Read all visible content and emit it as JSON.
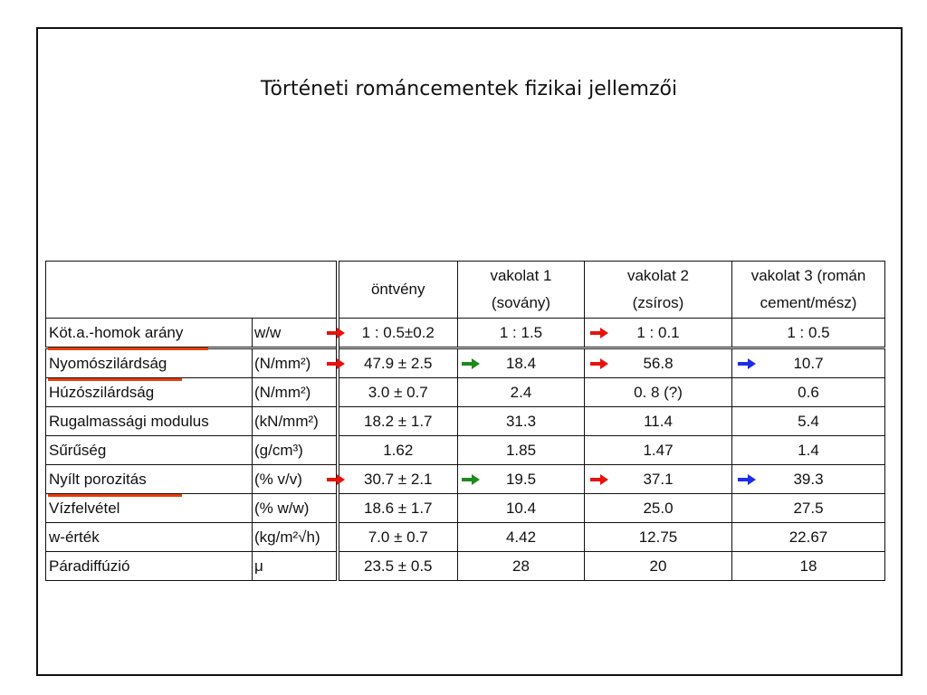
{
  "title": "Történeti románcementek fizikai jellemzői",
  "table": {
    "header": [
      [
        "öntvény"
      ],
      [
        "vakolat 1",
        "(sovány)"
      ],
      [
        "vakolat 2",
        "(zsíros)"
      ],
      [
        "vakolat 3 (román",
        "cement/mész)"
      ]
    ],
    "rows": [
      {
        "label": "Köt.a.-homok arány",
        "underline": "#e83e0c",
        "unit": "w/w",
        "cells": [
          {
            "text": "1 : 0.5±0.2",
            "arrow": "#e8120c"
          },
          {
            "text": "1 : 1.5"
          },
          {
            "text": "1 : 0.1",
            "arrow": "#e8120c"
          },
          {
            "text": "1 : 0.5"
          }
        ]
      },
      {
        "label": "Nyomószilárdság",
        "underline": "#e83e0c",
        "unit": "(N/mm²)",
        "cells": [
          {
            "text": "47.9 ± 2.5",
            "arrow": "#e8120c"
          },
          {
            "text": "18.4",
            "arrow": "#1e8a1e"
          },
          {
            "text": "56.8",
            "arrow": "#e8120c"
          },
          {
            "text": "10.7",
            "arrow": "#1a2ee8"
          }
        ]
      },
      {
        "label": "Húzószilárdság",
        "unit": "(N/mm²)",
        "cells": [
          {
            "text": "3.0 ± 0.7"
          },
          {
            "text": "2.4"
          },
          {
            "text": "0. 8 (?)"
          },
          {
            "text": "0.6"
          }
        ]
      },
      {
        "label": "Rugalmassági modulus",
        "unit": "(kN/mm²)",
        "cells": [
          {
            "text": "18.2 ± 1.7"
          },
          {
            "text": "31.3"
          },
          {
            "text": "11.4"
          },
          {
            "text": "5.4"
          }
        ]
      },
      {
        "label": "Sűrűség",
        "unit": "(g/cm³)",
        "cells": [
          {
            "text": "1.62"
          },
          {
            "text": "1.85"
          },
          {
            "text": "1.47"
          },
          {
            "text": "1.4"
          }
        ]
      },
      {
        "label": "Nyílt porozitás",
        "underline": "#e83e0c",
        "unit": "(% v/v)",
        "cells": [
          {
            "text": "30.7 ± 2.1",
            "arrow": "#e8120c"
          },
          {
            "text": "19.5",
            "arrow": "#1e8a1e"
          },
          {
            "text": "37.1",
            "arrow": "#e8120c"
          },
          {
            "text": "39.3",
            "arrow": "#1a2ee8"
          }
        ]
      },
      {
        "label": "Vízfelvétel",
        "unit": "(% w/w)",
        "cells": [
          {
            "text": "18.6 ± 1.7"
          },
          {
            "text": "10.4"
          },
          {
            "text": "25.0"
          },
          {
            "text": "27.5"
          }
        ]
      },
      {
        "label": "w-érték",
        "unit": "(kg/m²√h)",
        "cells": [
          {
            "text": "7.0 ± 0.7"
          },
          {
            "text": "4.42"
          },
          {
            "text": "12.75"
          },
          {
            "text": "22.67"
          }
        ]
      },
      {
        "label": "Páradiffúzió",
        "unit": "μ",
        "cells": [
          {
            "text": "23.5 ± 0.5"
          },
          {
            "text": "28"
          },
          {
            "text": "20"
          },
          {
            "text": "18"
          }
        ]
      }
    ]
  }
}
